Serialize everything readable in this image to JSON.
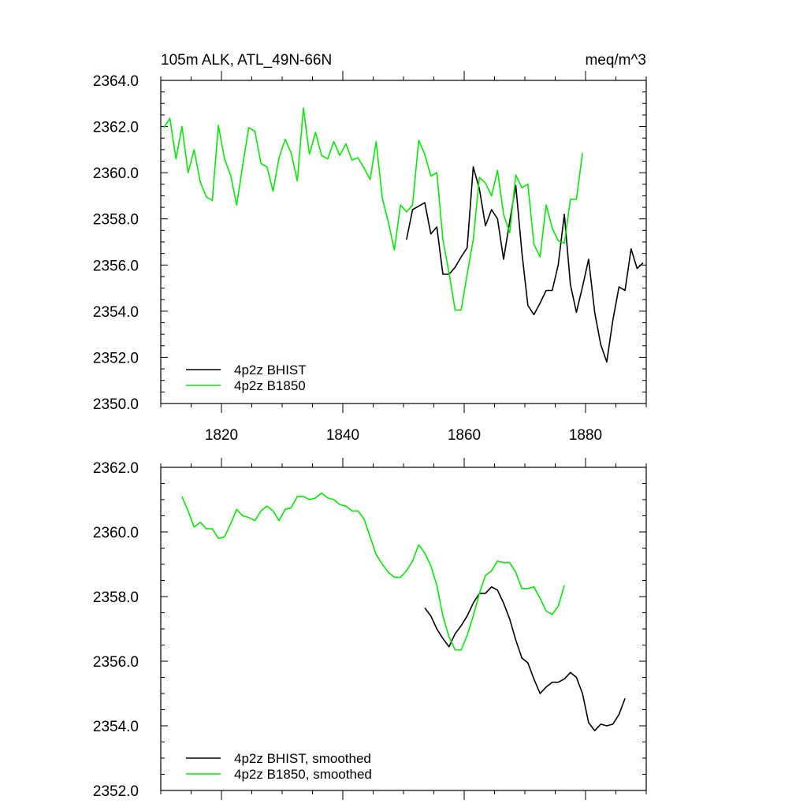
{
  "colors": {
    "bhist": "#000000",
    "b1850": "#00ee00"
  },
  "chart_data": [
    {
      "type": "line",
      "title": "105m ALK, ATL_49N-66N",
      "units": "meq/m^3",
      "xlim": [
        1810,
        1890
      ],
      "ylim": [
        2350,
        2364
      ],
      "xticks": [
        1820,
        1840,
        1860,
        1880
      ],
      "xtick_labels": [
        "1820",
        "1840",
        "1860",
        "1880"
      ],
      "yticks": [
        2350,
        2352,
        2354,
        2356,
        2358,
        2360,
        2362,
        2364
      ],
      "ytick_labels": [
        "2350.0",
        "2352.0",
        "2354.0",
        "2356.0",
        "2358.0",
        "2360.0",
        "2362.0",
        "2364.0"
      ],
      "legend_position": "bottom-left",
      "series": [
        {
          "name": "4p2z BHIST",
          "color": "bhist",
          "x": [
            1850.5,
            1851.5,
            1852.5,
            1853.5,
            1854.5,
            1855.5,
            1856.5,
            1857.5,
            1858.5,
            1859.5,
            1860.5,
            1861.5,
            1862.5,
            1863.5,
            1864.5,
            1865.5,
            1866.5,
            1867.5,
            1868.5,
            1869.5,
            1870.5,
            1871.5,
            1872.5,
            1873.5,
            1874.5,
            1875.5,
            1876.5,
            1877.5,
            1878.5,
            1879.5,
            1880.5,
            1881.5,
            1882.5,
            1883.5,
            1884.5,
            1885.5,
            1886.5,
            1887.5,
            1888.5,
            1889.5
          ],
          "y": [
            2357.1,
            2358.4,
            2358.55,
            2358.7,
            2357.35,
            2357.65,
            2355.6,
            2355.6,
            2355.9,
            2356.35,
            2356.75,
            2360.25,
            2359.3,
            2357.7,
            2358.4,
            2358.0,
            2356.25,
            2357.9,
            2359.45,
            2356.55,
            2354.25,
            2353.85,
            2354.35,
            2354.9,
            2354.9,
            2356.0,
            2358.2,
            2355.15,
            2353.95,
            2355.05,
            2356.25,
            2353.95,
            2352.55,
            2351.8,
            2353.6,
            2355.05,
            2354.9,
            2356.7,
            2355.85,
            2356.1
          ]
        },
        {
          "name": "4p2z B1850",
          "color": "b1850",
          "x": [
            1810.5,
            1811.5,
            1812.5,
            1813.5,
            1814.5,
            1815.5,
            1816.5,
            1817.5,
            1818.5,
            1819.5,
            1820.5,
            1821.5,
            1822.5,
            1823.5,
            1824.5,
            1825.5,
            1826.5,
            1827.5,
            1828.5,
            1829.5,
            1830.5,
            1831.5,
            1832.5,
            1833.5,
            1834.5,
            1835.5,
            1836.5,
            1837.5,
            1838.5,
            1839.5,
            1840.5,
            1841.5,
            1842.5,
            1843.5,
            1844.5,
            1845.5,
            1846.5,
            1847.5,
            1848.5,
            1849.5,
            1850.5,
            1851.5,
            1852.5,
            1853.5,
            1854.5,
            1855.5,
            1856.5,
            1857.5,
            1858.5,
            1859.5,
            1860.5,
            1861.5,
            1862.5,
            1863.5,
            1864.5,
            1865.5,
            1866.5,
            1867.5,
            1868.5,
            1869.5,
            1870.5,
            1871.5,
            1872.5,
            1873.5,
            1874.5,
            1875.5,
            1876.5,
            1877.5,
            1878.5,
            1879.5
          ],
          "y": [
            2361.95,
            2362.35,
            2360.6,
            2362.0,
            2360.0,
            2361.0,
            2359.6,
            2358.95,
            2358.8,
            2362.05,
            2360.6,
            2359.9,
            2358.6,
            2360.3,
            2361.95,
            2361.8,
            2360.4,
            2360.25,
            2359.2,
            2360.65,
            2361.45,
            2360.85,
            2359.65,
            2362.8,
            2360.8,
            2361.75,
            2360.75,
            2360.6,
            2361.35,
            2360.75,
            2361.25,
            2360.55,
            2360.65,
            2360.2,
            2359.7,
            2361.35,
            2358.9,
            2357.85,
            2356.65,
            2358.6,
            2358.3,
            2358.6,
            2361.4,
            2360.8,
            2359.85,
            2360.0,
            2357.1,
            2355.65,
            2354.05,
            2354.05,
            2355.6,
            2357.1,
            2359.8,
            2359.55,
            2359.0,
            2360.1,
            2358.2,
            2357.4,
            2359.9,
            2359.35,
            2359.5,
            2356.9,
            2356.35,
            2358.6,
            2357.6,
            2357.05,
            2356.95,
            2358.85,
            2358.85,
            2360.85
          ]
        }
      ]
    },
    {
      "type": "line",
      "title": "",
      "units": "",
      "xlim": [
        1810,
        1890
      ],
      "ylim": [
        2352,
        2362
      ],
      "xticks": [
        1820,
        1840,
        1860,
        1880
      ],
      "xtick_labels": [],
      "yticks": [
        2352,
        2354,
        2356,
        2358,
        2360,
        2362
      ],
      "ytick_labels": [
        "2352.0",
        "2354.0",
        "2356.0",
        "2358.0",
        "2360.0",
        "2362.0"
      ],
      "legend_position": "bottom-left",
      "series": [
        {
          "name": "4p2z BHIST, smoothed",
          "color": "bhist",
          "x": [
            1853.5,
            1854.5,
            1855.5,
            1856.5,
            1857.5,
            1858.5,
            1859.5,
            1860.5,
            1861.5,
            1862.5,
            1863.5,
            1864.5,
            1865.5,
            1866.5,
            1867.5,
            1868.5,
            1869.5,
            1870.5,
            1871.5,
            1872.5,
            1873.5,
            1874.5,
            1875.5,
            1876.5,
            1877.5,
            1878.5,
            1879.5,
            1880.5,
            1881.5,
            1882.5,
            1883.5,
            1884.5,
            1885.5,
            1886.5
          ],
          "y": [
            2357.65,
            2357.4,
            2357.0,
            2356.7,
            2356.45,
            2356.85,
            2357.1,
            2357.4,
            2357.8,
            2358.1,
            2358.1,
            2358.3,
            2358.2,
            2357.8,
            2357.3,
            2356.65,
            2356.1,
            2355.95,
            2355.45,
            2355.0,
            2355.2,
            2355.35,
            2355.35,
            2355.45,
            2355.65,
            2355.5,
            2355.0,
            2354.1,
            2353.85,
            2354.05,
            2354.0,
            2354.05,
            2354.35,
            2354.85
          ]
        },
        {
          "name": "4p2z B1850, smoothed",
          "color": "b1850",
          "x": [
            1813.5,
            1814.5,
            1815.5,
            1816.5,
            1817.5,
            1818.5,
            1819.5,
            1820.5,
            1821.5,
            1822.5,
            1823.5,
            1824.5,
            1825.5,
            1826.5,
            1827.5,
            1828.5,
            1829.5,
            1830.5,
            1831.5,
            1832.5,
            1833.5,
            1834.5,
            1835.5,
            1836.5,
            1837.5,
            1838.5,
            1839.5,
            1840.5,
            1841.5,
            1842.5,
            1843.5,
            1844.5,
            1845.5,
            1846.5,
            1847.5,
            1848.5,
            1849.5,
            1850.5,
            1851.5,
            1852.5,
            1853.5,
            1854.5,
            1855.5,
            1856.5,
            1857.5,
            1858.5,
            1859.5,
            1860.5,
            1861.5,
            1862.5,
            1863.5,
            1864.5,
            1865.5,
            1866.5,
            1867.5,
            1868.5,
            1869.5,
            1870.5,
            1871.5,
            1872.5,
            1873.5,
            1874.5,
            1875.5,
            1876.5
          ],
          "y": [
            2361.1,
            2360.65,
            2360.15,
            2360.3,
            2360.1,
            2360.1,
            2359.8,
            2359.85,
            2360.25,
            2360.7,
            2360.5,
            2360.45,
            2360.35,
            2360.65,
            2360.8,
            2360.65,
            2360.35,
            2360.7,
            2360.75,
            2361.1,
            2361.1,
            2361.0,
            2361.05,
            2361.2,
            2361.05,
            2361.0,
            2360.85,
            2360.8,
            2360.65,
            2360.65,
            2360.4,
            2359.85,
            2359.3,
            2359.0,
            2358.75,
            2358.6,
            2358.6,
            2358.8,
            2359.1,
            2359.6,
            2359.35,
            2358.95,
            2358.35,
            2357.4,
            2356.75,
            2356.35,
            2356.35,
            2356.8,
            2357.4,
            2358.1,
            2358.65,
            2358.8,
            2359.1,
            2359.05,
            2359.05,
            2358.75,
            2358.25,
            2358.25,
            2358.3,
            2357.95,
            2357.55,
            2357.45,
            2357.7,
            2358.35
          ]
        }
      ]
    }
  ]
}
